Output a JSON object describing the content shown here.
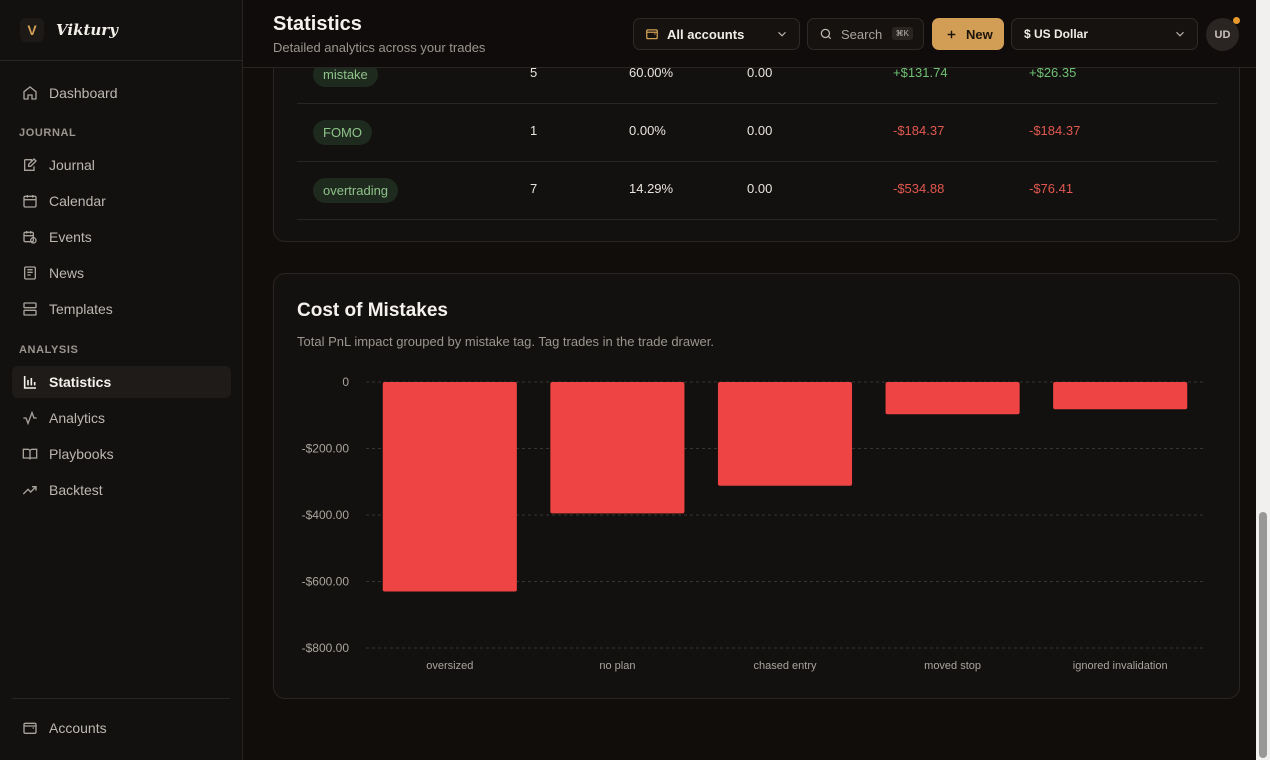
{
  "brand": {
    "logo_letter": "V",
    "name": "Viktury"
  },
  "sidebar": {
    "top_items": [
      {
        "label": "Dashboard",
        "icon": "home-icon"
      }
    ],
    "journal_section": "JOURNAL",
    "journal_items": [
      {
        "label": "Journal",
        "icon": "edit-icon"
      },
      {
        "label": "Calendar",
        "icon": "calendar-icon"
      },
      {
        "label": "Events",
        "icon": "calendar-clock-icon"
      },
      {
        "label": "News",
        "icon": "newspaper-icon"
      },
      {
        "label": "Templates",
        "icon": "layout-icon"
      }
    ],
    "analysis_section": "ANALYSIS",
    "analysis_items": [
      {
        "label": "Statistics",
        "icon": "bar-chart-icon",
        "active": true
      },
      {
        "label": "Analytics",
        "icon": "activity-icon"
      },
      {
        "label": "Playbooks",
        "icon": "book-icon"
      },
      {
        "label": "Backtest",
        "icon": "trending-up-icon"
      }
    ],
    "bottom_items": [
      {
        "label": "Accounts",
        "icon": "wallet-icon"
      }
    ]
  },
  "header": {
    "title": "Statistics",
    "subtitle": "Detailed analytics across your trades",
    "accounts_label": "All accounts",
    "search_label": "Search",
    "search_shortcut": "⌘K",
    "new_label": "New",
    "currency_label": "$ US Dollar",
    "avatar_initials": "UD"
  },
  "tag_table": {
    "rows": [
      {
        "tag": "mistake",
        "trades": "5",
        "win_rate": "60.00%",
        "col4": "0.00",
        "total_pnl": "+$131.74",
        "avg_pnl": "+$26.35",
        "sign": "pos"
      },
      {
        "tag": "FOMO",
        "trades": "1",
        "win_rate": "0.00%",
        "col4": "0.00",
        "total_pnl": "-$184.37",
        "avg_pnl": "-$184.37",
        "sign": "neg"
      },
      {
        "tag": "overtrading",
        "trades": "7",
        "win_rate": "14.29%",
        "col4": "0.00",
        "total_pnl": "-$534.88",
        "avg_pnl": "-$76.41",
        "sign": "neg"
      }
    ]
  },
  "cost_card": {
    "title": "Cost of Mistakes",
    "description": "Total PnL impact grouped by mistake tag. Tag trades in the trade drawer."
  },
  "colors": {
    "accent": "#d29e56",
    "bar": "#ef4444",
    "positive": "#6fbf73",
    "negative": "#e0584f"
  },
  "chart_data": {
    "type": "bar",
    "categories": [
      "oversized",
      "no plan",
      "chased entry",
      "moved stop",
      "ignored invalidation"
    ],
    "values": [
      -630,
      -395,
      -312,
      -97,
      -82
    ],
    "y_ticks": [
      0,
      -200,
      -400,
      -600,
      -800
    ],
    "y_tick_labels": [
      "0",
      "-$200.00",
      "-$400.00",
      "-$600.00",
      "-$800.00"
    ],
    "ylim": [
      -800,
      0
    ],
    "grid": true,
    "bar_color": "#ef4444",
    "title": "",
    "xlabel": "",
    "ylabel": ""
  }
}
